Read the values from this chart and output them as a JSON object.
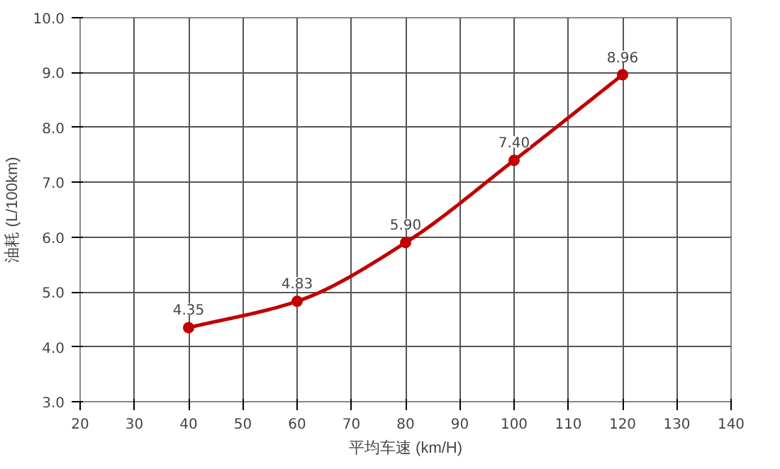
{
  "chart_data": {
    "type": "line",
    "xlabel": "平均车速 (km/H)",
    "ylabel": "油耗 (L/100km)",
    "x": [
      40,
      60,
      80,
      100,
      120
    ],
    "series": [
      {
        "color": "#c00000",
        "values": [
          4.35,
          4.83,
          5.9,
          7.4,
          8.96
        ],
        "value_labels": [
          "4.35",
          "4.83",
          "5.90",
          "7.40",
          "8.96"
        ]
      }
    ],
    "xlim": [
      20,
      140
    ],
    "xticks": [
      20,
      30,
      40,
      50,
      60,
      70,
      80,
      90,
      100,
      110,
      120,
      130,
      140
    ],
    "ylim": [
      3,
      10
    ],
    "yticks": [
      {
        "value": 3,
        "label": "3.0"
      },
      {
        "value": 4,
        "label": "4.0"
      },
      {
        "value": 5,
        "label": "5.0"
      },
      {
        "value": 6,
        "label": "6.0"
      },
      {
        "value": 7,
        "label": "7.0"
      },
      {
        "value": 8,
        "label": "8.0"
      },
      {
        "value": 9,
        "label": "9.0"
      },
      {
        "value": 10,
        "label": "10.0"
      }
    ],
    "grid": true,
    "marker": "circle",
    "line_style": "solid"
  }
}
